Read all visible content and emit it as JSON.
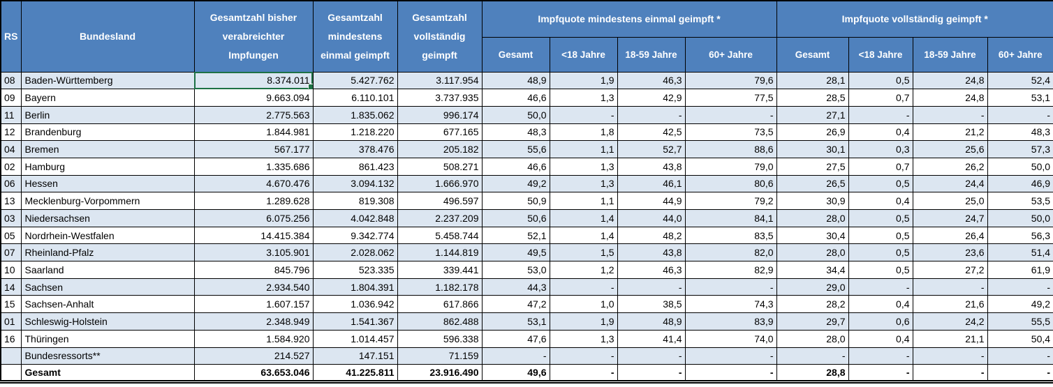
{
  "colors": {
    "header_bg": "#4f81bd",
    "band_bg": "#dce6f1",
    "selection_green": "#1e7145",
    "grid": "#000000"
  },
  "header": {
    "rs": "RS",
    "bundesland": "Bundesland",
    "total_administered": "Gesamtzahl bisher verabreichter Impfungen",
    "total_first_dose": "Gesamtzahl mindestens einmal geimpft",
    "total_fully": "Gesamtzahl vollständig geimpft",
    "group_first": "Impfquote mindestens einmal geimpft *",
    "group_full": "Impfquote vollständig geimpft *",
    "sub_first": [
      "Gesamt",
      "<18 Jahre",
      "18-59 Jahre",
      "60+ Jahre"
    ],
    "sub_full": [
      "Gesamt",
      "<18 Jahre",
      "18-59 Jahre",
      "60+ Jahre"
    ]
  },
  "selection": {
    "row_index": 0,
    "value_index": 0
  },
  "rows": [
    {
      "rs": "08",
      "bundesland": "Baden-Württemberg",
      "values": [
        "8.374.011",
        "5.427.762",
        "3.117.954",
        "48,9",
        "1,9",
        "46,3",
        "79,6",
        "28,1",
        "0,5",
        "24,8",
        "52,4"
      ]
    },
    {
      "rs": "09",
      "bundesland": "Bayern",
      "values": [
        "9.663.094",
        "6.110.101",
        "3.737.935",
        "46,6",
        "1,3",
        "42,9",
        "77,5",
        "28,5",
        "0,7",
        "24,8",
        "53,1"
      ]
    },
    {
      "rs": "11",
      "bundesland": "Berlin",
      "values": [
        "2.775.563",
        "1.835.062",
        "996.174",
        "50,0",
        "-",
        "-",
        "-",
        "27,1",
        "-",
        "-",
        "-"
      ]
    },
    {
      "rs": "12",
      "bundesland": "Brandenburg",
      "values": [
        "1.844.981",
        "1.218.220",
        "677.165",
        "48,3",
        "1,8",
        "42,5",
        "73,5",
        "26,9",
        "0,4",
        "21,2",
        "48,3"
      ]
    },
    {
      "rs": "04",
      "bundesland": "Bremen",
      "values": [
        "567.177",
        "378.476",
        "205.182",
        "55,6",
        "1,1",
        "52,7",
        "88,6",
        "30,1",
        "0,3",
        "25,6",
        "57,3"
      ]
    },
    {
      "rs": "02",
      "bundesland": "Hamburg",
      "values": [
        "1.335.686",
        "861.423",
        "508.271",
        "46,6",
        "1,3",
        "43,8",
        "79,0",
        "27,5",
        "0,7",
        "26,2",
        "50,0"
      ]
    },
    {
      "rs": "06",
      "bundesland": "Hessen",
      "values": [
        "4.670.476",
        "3.094.132",
        "1.666.970",
        "49,2",
        "1,3",
        "46,1",
        "80,6",
        "26,5",
        "0,5",
        "24,4",
        "46,9"
      ]
    },
    {
      "rs": "13",
      "bundesland": "Mecklenburg-Vorpommern",
      "values": [
        "1.289.628",
        "819.308",
        "496.597",
        "50,9",
        "1,1",
        "44,9",
        "79,2",
        "30,9",
        "0,4",
        "25,0",
        "53,5"
      ]
    },
    {
      "rs": "03",
      "bundesland": "Niedersachsen",
      "values": [
        "6.075.256",
        "4.042.848",
        "2.237.209",
        "50,6",
        "1,4",
        "44,0",
        "84,1",
        "28,0",
        "0,5",
        "24,7",
        "50,0"
      ]
    },
    {
      "rs": "05",
      "bundesland": "Nordrhein-Westfalen",
      "values": [
        "14.415.384",
        "9.342.774",
        "5.458.744",
        "52,1",
        "1,4",
        "48,2",
        "83,5",
        "30,4",
        "0,5",
        "26,4",
        "56,3"
      ]
    },
    {
      "rs": "07",
      "bundesland": "Rheinland-Pfalz",
      "values": [
        "3.105.901",
        "2.028.062",
        "1.144.819",
        "49,5",
        "1,5",
        "43,8",
        "82,0",
        "28,0",
        "0,5",
        "23,6",
        "51,4"
      ]
    },
    {
      "rs": "10",
      "bundesland": "Saarland",
      "values": [
        "845.796",
        "523.335",
        "339.441",
        "53,0",
        "1,2",
        "46,3",
        "82,9",
        "34,4",
        "0,5",
        "27,2",
        "61,9"
      ]
    },
    {
      "rs": "14",
      "bundesland": "Sachsen",
      "values": [
        "2.934.540",
        "1.804.391",
        "1.182.178",
        "44,3",
        "-",
        "-",
        "-",
        "29,0",
        "-",
        "-",
        "-"
      ]
    },
    {
      "rs": "15",
      "bundesland": "Sachsen-Anhalt",
      "values": [
        "1.607.157",
        "1.036.942",
        "617.866",
        "47,2",
        "1,0",
        "38,5",
        "74,3",
        "28,2",
        "0,4",
        "21,6",
        "49,2"
      ]
    },
    {
      "rs": "01",
      "bundesland": "Schleswig-Holstein",
      "values": [
        "2.348.949",
        "1.541.367",
        "862.488",
        "53,1",
        "1,9",
        "48,9",
        "83,9",
        "29,7",
        "0,6",
        "24,2",
        "55,5"
      ]
    },
    {
      "rs": "16",
      "bundesland": "Thüringen",
      "values": [
        "1.584.920",
        "1.014.457",
        "596.338",
        "47,6",
        "1,3",
        "41,4",
        "74,0",
        "28,0",
        "0,4",
        "21,1",
        "50,4"
      ]
    },
    {
      "rs": "",
      "bundesland": "Bundesressorts**",
      "values": [
        "214.527",
        "147.151",
        "71.159",
        "-",
        "-",
        "-",
        "-",
        "-",
        "-",
        "-",
        "-"
      ]
    },
    {
      "rs": "",
      "bundesland": "Gesamt",
      "bold": true,
      "values": [
        "63.653.046",
        "41.225.811",
        "23.916.490",
        "49,6",
        "-",
        "-",
        "-",
        "28,8",
        "-",
        "-",
        "-"
      ]
    }
  ]
}
